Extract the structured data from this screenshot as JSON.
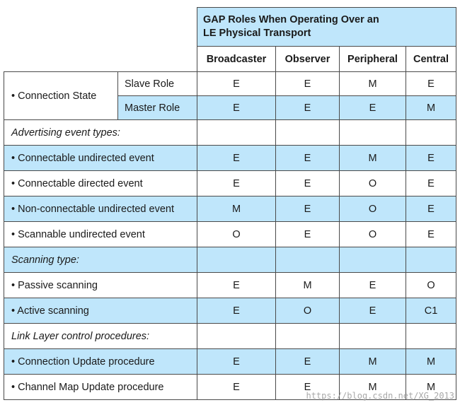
{
  "header": {
    "title_line1": "GAP Roles When Operating Over an",
    "title_line2": "LE Physical Transport",
    "columns": [
      "Broadcaster",
      "Observer",
      "Peripheral",
      "Central"
    ]
  },
  "connection_state": {
    "label": "• Connection State",
    "rows": [
      {
        "role": "Slave Role",
        "values": [
          "E",
          "E",
          "M",
          "E"
        ]
      },
      {
        "role": "Master Role",
        "values": [
          "E",
          "E",
          "E",
          "M"
        ]
      }
    ]
  },
  "sections": [
    {
      "title": "Advertising event types:",
      "rows": [
        {
          "label": "• Connectable undirected event",
          "values": [
            "E",
            "E",
            "M",
            "E"
          ]
        },
        {
          "label": "• Connectable directed event",
          "values": [
            "E",
            "E",
            "O",
            "E"
          ]
        },
        {
          "label": "• Non-connectable undirected event",
          "values": [
            "M",
            "E",
            "O",
            "E"
          ]
        },
        {
          "label": "• Scannable undirected event",
          "values": [
            "O",
            "E",
            "O",
            "E"
          ]
        }
      ]
    },
    {
      "title": "Scanning type:",
      "rows": [
        {
          "label": "• Passive scanning",
          "values": [
            "E",
            "M",
            "E",
            "O"
          ]
        },
        {
          "label": "• Active scanning",
          "values": [
            "E",
            "O",
            "E",
            "C1"
          ]
        }
      ]
    },
    {
      "title": "Link Layer control procedures:",
      "rows": [
        {
          "label": "• Connection Update procedure",
          "values": [
            "E",
            "E",
            "M",
            "M"
          ]
        },
        {
          "label": "• Channel Map Update procedure",
          "values": [
            "E",
            "E",
            "M",
            "M"
          ]
        }
      ]
    }
  ],
  "watermark": "https://blog.csdn.net/XG_2013",
  "colors": {
    "row_highlight": "#bfe6fb",
    "border": "#4a4a4a"
  }
}
